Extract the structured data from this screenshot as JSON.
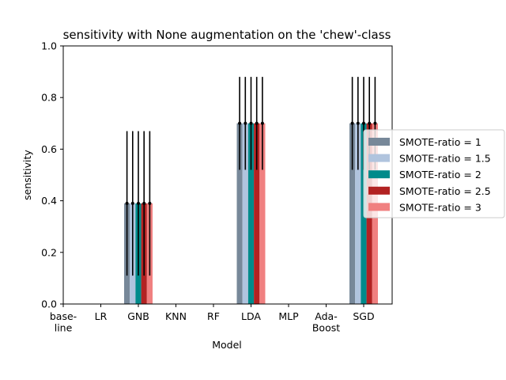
{
  "chart_data": {
    "type": "bar",
    "title": "sensitivity with None augmentation on the 'chew'-class",
    "xlabel": "Model",
    "ylabel": "sensitivity",
    "ylim": [
      0,
      1.0
    ],
    "yticks": [
      "0.0",
      "0.2",
      "0.4",
      "0.6",
      "0.8",
      "1.0"
    ],
    "categories": [
      [
        "base-",
        "line"
      ],
      [
        "LR"
      ],
      [
        "GNB"
      ],
      [
        "KNN"
      ],
      [
        "RF"
      ],
      [
        "LDA"
      ],
      [
        "MLP"
      ],
      [
        "Ada-",
        "Boost"
      ],
      [
        "SGD"
      ]
    ],
    "series": [
      {
        "name": "SMOTE-ratio = 1",
        "color": "#778899",
        "values": [
          0,
          0,
          0.39,
          0,
          0,
          0.7,
          0,
          0,
          0.7
        ],
        "err": [
          0,
          0,
          0.28,
          0,
          0,
          0.18,
          0,
          0,
          0.18
        ]
      },
      {
        "name": "SMOTE-ratio = 1.5",
        "color": "#b0c4de",
        "values": [
          0,
          0,
          0.39,
          0,
          0,
          0.7,
          0,
          0,
          0.7
        ],
        "err": [
          0,
          0,
          0.28,
          0,
          0,
          0.18,
          0,
          0,
          0.18
        ]
      },
      {
        "name": "SMOTE-ratio = 2",
        "color": "#008b8b",
        "values": [
          0,
          0,
          0.39,
          0,
          0,
          0.7,
          0,
          0,
          0.7
        ],
        "err": [
          0,
          0,
          0.28,
          0,
          0,
          0.18,
          0,
          0,
          0.18
        ]
      },
      {
        "name": "SMOTE-ratio = 2.5",
        "color": "#b22222",
        "values": [
          0,
          0,
          0.39,
          0,
          0,
          0.7,
          0,
          0,
          0.7
        ],
        "err": [
          0,
          0,
          0.28,
          0,
          0,
          0.18,
          0,
          0,
          0.18
        ]
      },
      {
        "name": "SMOTE-ratio = 3",
        "color": "#f08080",
        "values": [
          0,
          0,
          0.39,
          0,
          0,
          0.7,
          0,
          0,
          0.7
        ],
        "err": [
          0,
          0,
          0.28,
          0,
          0,
          0.18,
          0,
          0,
          0.18
        ]
      }
    ],
    "legend_position": "right",
    "grid": false
  }
}
